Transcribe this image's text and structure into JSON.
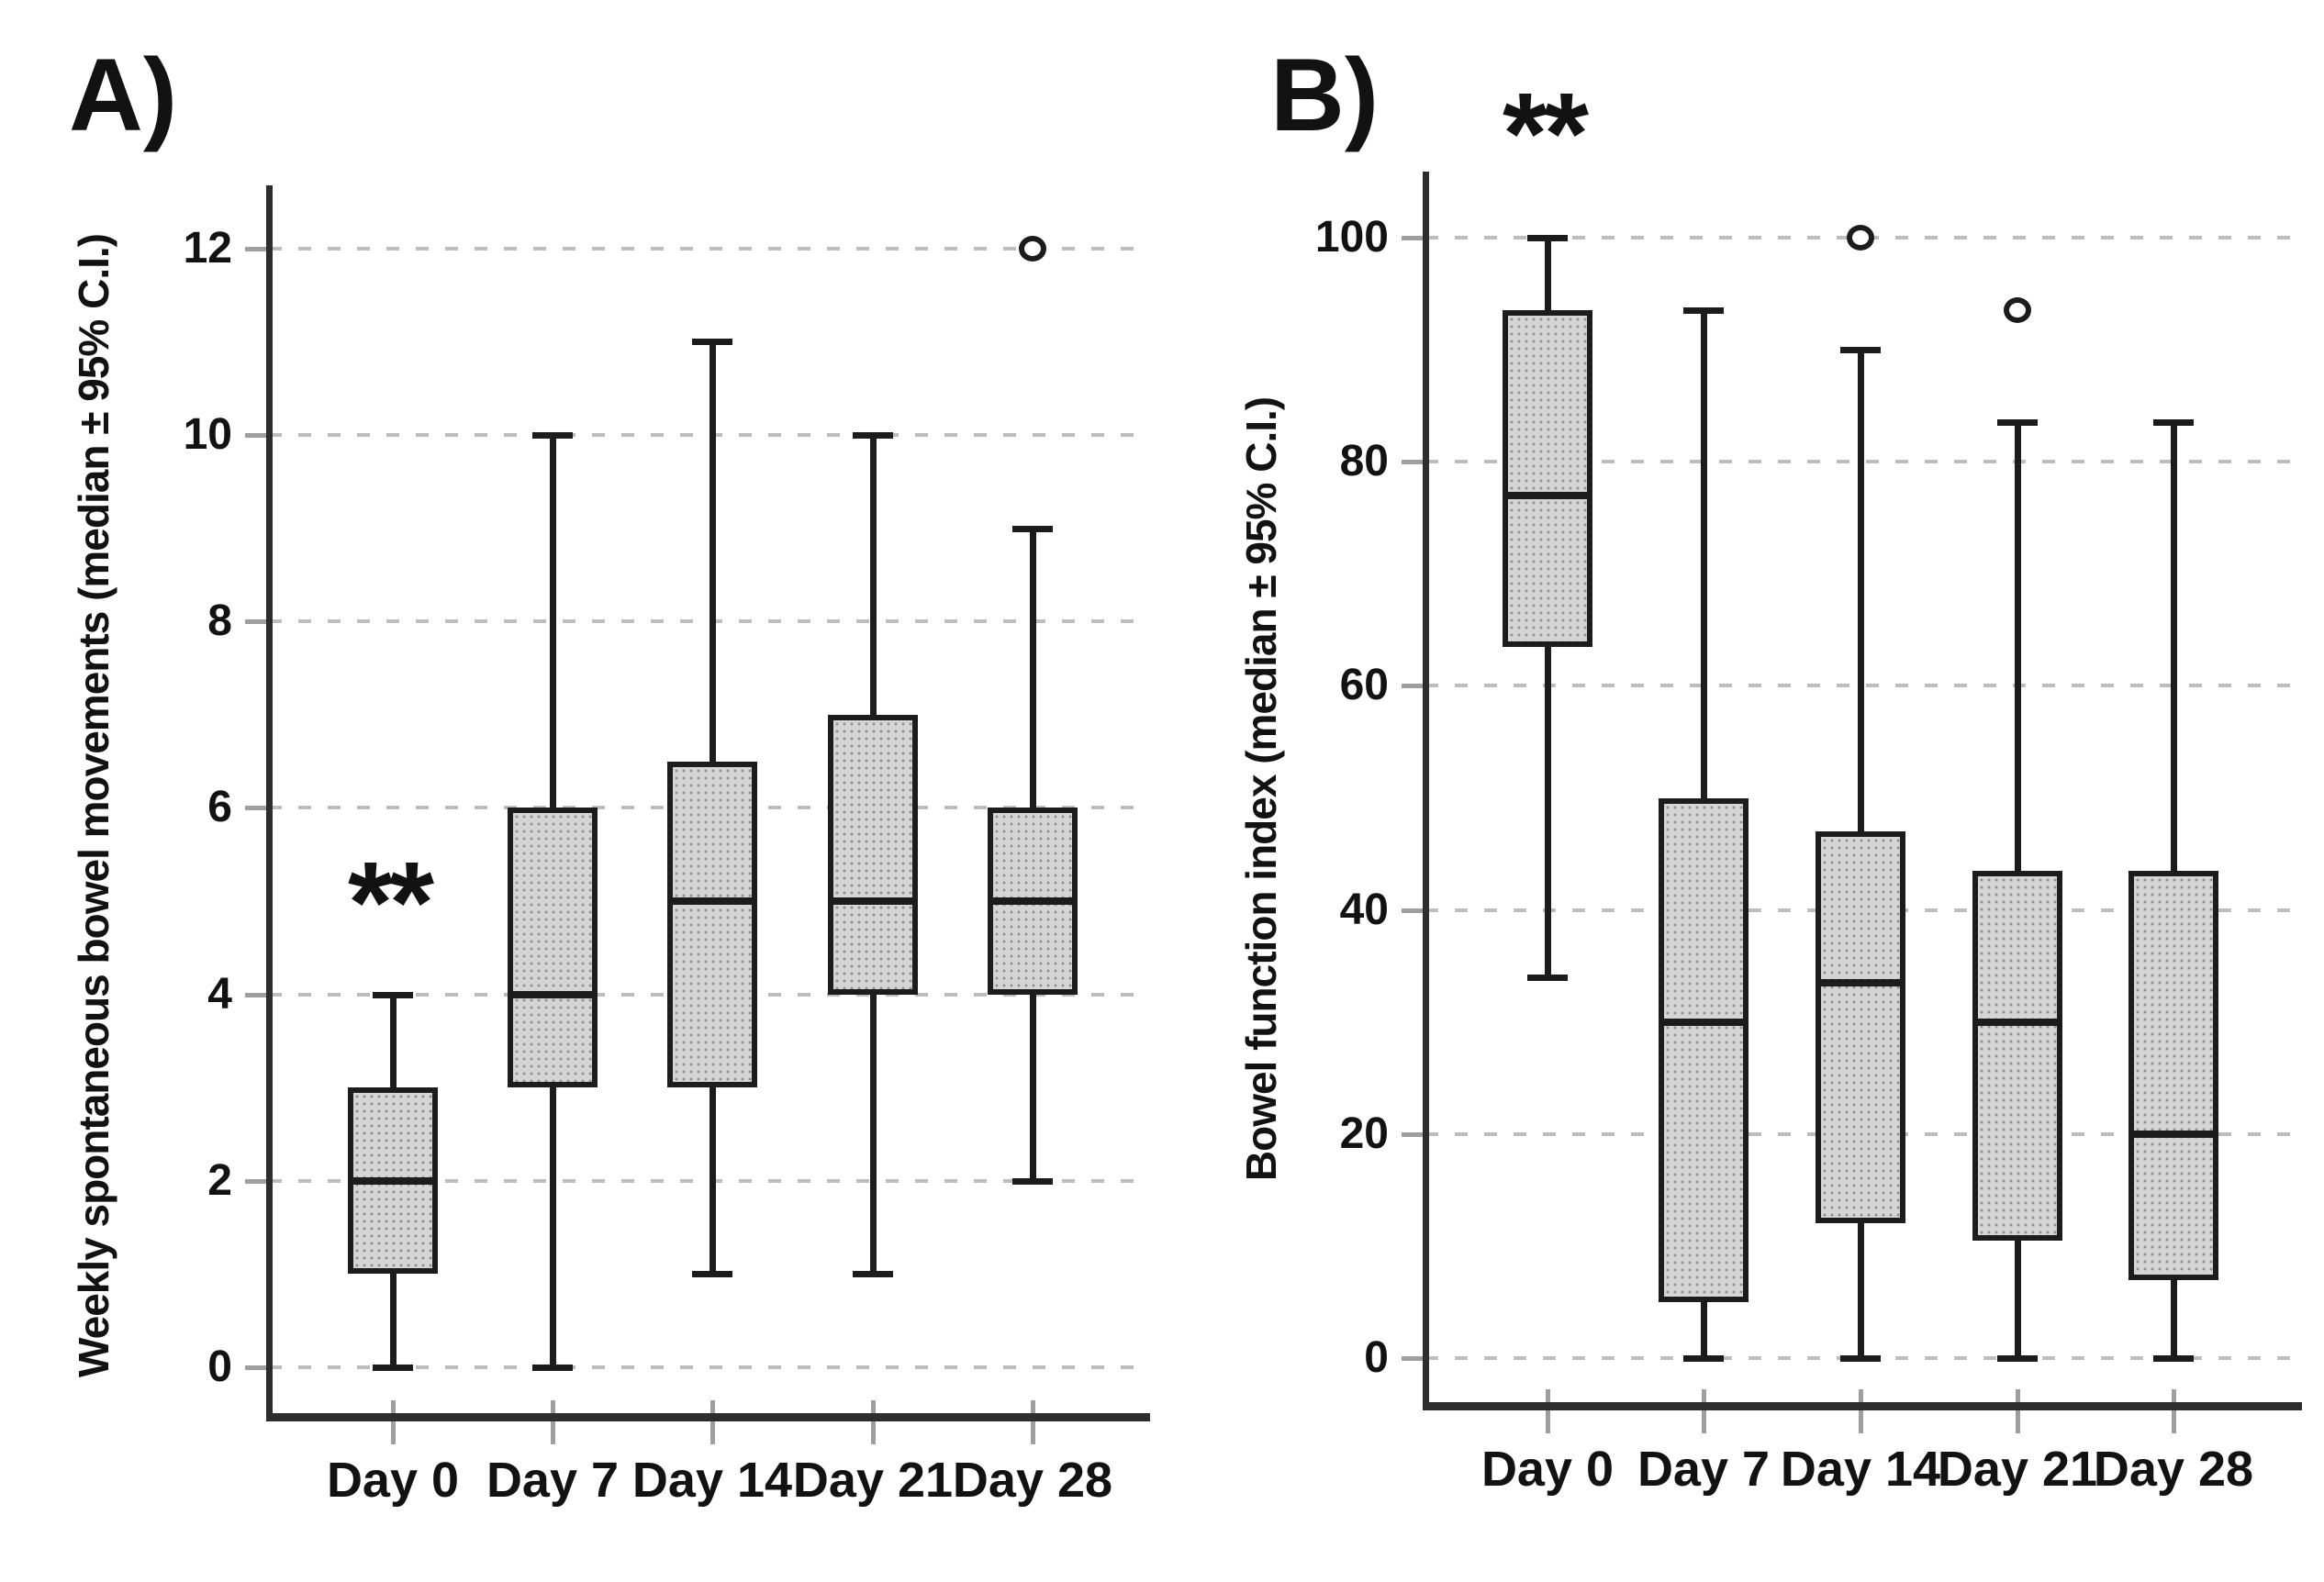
{
  "figure": {
    "background": "#ffffff",
    "box_fill_color": "#d5d5d5",
    "box_dot_color": "#8f8f8f",
    "line_color": "#1c1c1c",
    "axis_color": "#2d2d2d",
    "gridline_color": "#bdbdbd",
    "tick_mark_color": "#9e9e9e",
    "text_color": "#121212"
  },
  "chart_data": [
    {
      "type": "box",
      "panel_label": "A)",
      "ylabel": "Weekly spontaneous bowel movements (median ± 95% C.I.)",
      "xlabel": "",
      "categories": [
        "Day 0",
        "Day 7",
        "Day 14",
        "Day 21",
        "Day 28"
      ],
      "yticks": [
        0,
        2,
        4,
        6,
        8,
        10,
        12
      ],
      "ylim": [
        0,
        12
      ],
      "grid": "horizontal-dashed",
      "legend": "none",
      "significance": {
        "text": "**",
        "category": "Day 0",
        "y_value": 4.95
      },
      "boxes": [
        {
          "category": "Day 0",
          "whisker_low": 0,
          "q1": 1,
          "median": 2,
          "q3": 3,
          "whisker_high": 4,
          "outliers": []
        },
        {
          "category": "Day 7",
          "whisker_low": 0,
          "q1": 3,
          "median": 4,
          "q3": 6,
          "whisker_high": 10,
          "outliers": []
        },
        {
          "category": "Day 14",
          "whisker_low": 1,
          "q1": 3,
          "median": 5,
          "q3": 6.5,
          "whisker_high": 11,
          "outliers": []
        },
        {
          "category": "Day 21",
          "whisker_low": 1,
          "q1": 4,
          "median": 5,
          "q3": 7,
          "whisker_high": 10,
          "outliers": []
        },
        {
          "category": "Day 28",
          "whisker_low": 2,
          "q1": 4,
          "median": 5,
          "q3": 6,
          "whisker_high": 9,
          "outliers": [
            12
          ]
        }
      ]
    },
    {
      "type": "box",
      "panel_label": "B)",
      "ylabel": "Bowel function index (median ± 95% C.I.)",
      "xlabel": "",
      "categories": [
        "Day 0",
        "Day 7",
        "Day 14",
        "Day 21",
        "Day 28"
      ],
      "yticks": [
        0,
        20,
        40,
        60,
        80,
        100
      ],
      "ylim": [
        0,
        100
      ],
      "grid": "horizontal-dashed",
      "legend": "none",
      "significance": {
        "text": "**",
        "category": "Day 0",
        "y_value": 109
      },
      "boxes": [
        {
          "category": "Day 0",
          "whisker_low": 34,
          "q1": 63.5,
          "median": 77,
          "q3": 93.5,
          "whisker_high": 100,
          "outliers": []
        },
        {
          "category": "Day 7",
          "whisker_low": 0,
          "q1": 5,
          "median": 30,
          "q3": 50,
          "whisker_high": 93.5,
          "outliers": []
        },
        {
          "category": "Day 14",
          "whisker_low": 0,
          "q1": 12,
          "median": 33.5,
          "q3": 47,
          "whisker_high": 90,
          "outliers": [
            100
          ]
        },
        {
          "category": "Day 21",
          "whisker_low": 0,
          "q1": 10.5,
          "median": 30,
          "q3": 43.5,
          "whisker_high": 83.5,
          "outliers": [
            93.5
          ]
        },
        {
          "category": "Day 28",
          "whisker_low": 0,
          "q1": 7,
          "median": 20,
          "q3": 43.5,
          "whisker_high": 83.5,
          "outliers": []
        }
      ]
    }
  ]
}
